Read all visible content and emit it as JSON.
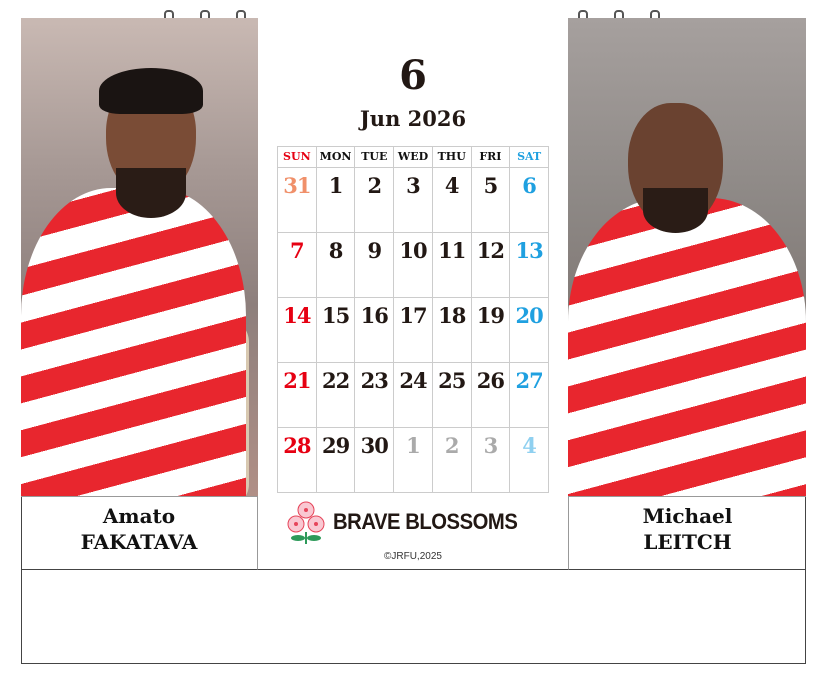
{
  "calendar": {
    "month_number": "6",
    "title": "Jun 2026",
    "weekdays": [
      "SUN",
      "MON",
      "TUE",
      "WED",
      "THU",
      "FRI",
      "SAT"
    ],
    "weeks": [
      [
        {
          "d": "31",
          "t": "prev"
        },
        {
          "d": "1"
        },
        {
          "d": "2"
        },
        {
          "d": "3"
        },
        {
          "d": "4"
        },
        {
          "d": "5"
        },
        {
          "d": "6"
        }
      ],
      [
        {
          "d": "7"
        },
        {
          "d": "8"
        },
        {
          "d": "9"
        },
        {
          "d": "10"
        },
        {
          "d": "11"
        },
        {
          "d": "12"
        },
        {
          "d": "13"
        }
      ],
      [
        {
          "d": "14"
        },
        {
          "d": "15"
        },
        {
          "d": "16"
        },
        {
          "d": "17"
        },
        {
          "d": "18"
        },
        {
          "d": "19"
        },
        {
          "d": "20"
        }
      ],
      [
        {
          "d": "21"
        },
        {
          "d": "22"
        },
        {
          "d": "23"
        },
        {
          "d": "24"
        },
        {
          "d": "25"
        },
        {
          "d": "26"
        },
        {
          "d": "27"
        }
      ],
      [
        {
          "d": "28"
        },
        {
          "d": "29"
        },
        {
          "d": "30"
        },
        {
          "d": "1",
          "t": "next"
        },
        {
          "d": "2",
          "t": "next"
        },
        {
          "d": "3",
          "t": "next"
        },
        {
          "d": "4",
          "t": "next"
        }
      ]
    ],
    "colors": {
      "sunday": "#e60012",
      "saturday": "#1fa0e0",
      "prev_month": "#f0906a",
      "next_month": "#aaaaaa"
    }
  },
  "players": {
    "left": {
      "first": "Amato",
      "last": "FAKATAVA"
    },
    "right": {
      "first": "Michael",
      "last": "LEITCH"
    }
  },
  "footer": {
    "brand": "BRAVE BLOSSOMS",
    "logo": "sakura-emblem-icon",
    "copyright": "©JRFU,2025"
  }
}
